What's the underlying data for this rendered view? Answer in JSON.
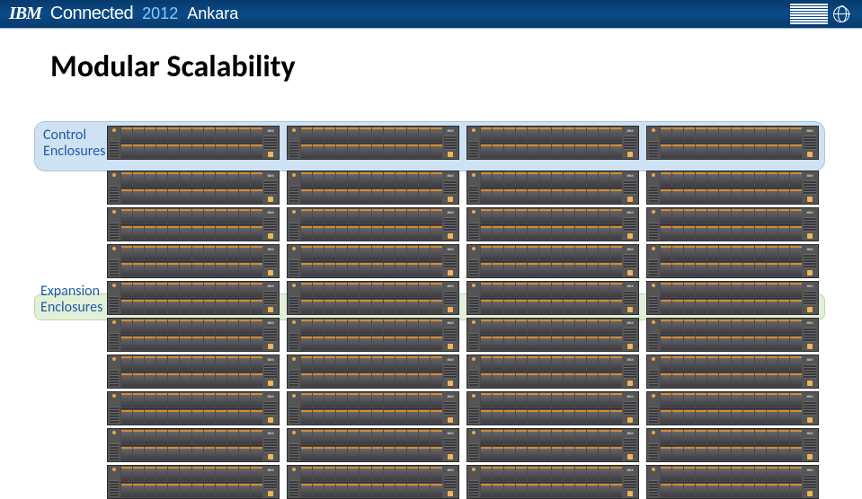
{
  "header": {
    "brand_logo": "IBM",
    "brand_word": "Connected",
    "year": "2012",
    "city": "Ankara"
  },
  "title": "Modular Scalability",
  "labels": {
    "control_line1": "Control",
    "control_line2": "Enclosures",
    "expansion_line1": "Expansion",
    "expansion_line2": "Enclosures"
  },
  "enclosure": {
    "ibm_tag": "IBM",
    "slots_per_row": 12,
    "rows": 2
  },
  "grid": {
    "columns": 4,
    "control_rows": 1,
    "expansion_rows": 9
  },
  "colors": {
    "header_gradient_top": "#063a6c",
    "header_gradient_mid": "#0a4b88",
    "control_bg": "#cfe2f3",
    "control_border": "#a9c5de",
    "expansion_bg": "#e2f0d9",
    "expansion_border": "#b9d7a8",
    "label_text": "#1f5baa",
    "enclosure_body": "#4b4b4f",
    "slot_top_accent": "#d58b2e",
    "lamp": "#f0b45a"
  }
}
